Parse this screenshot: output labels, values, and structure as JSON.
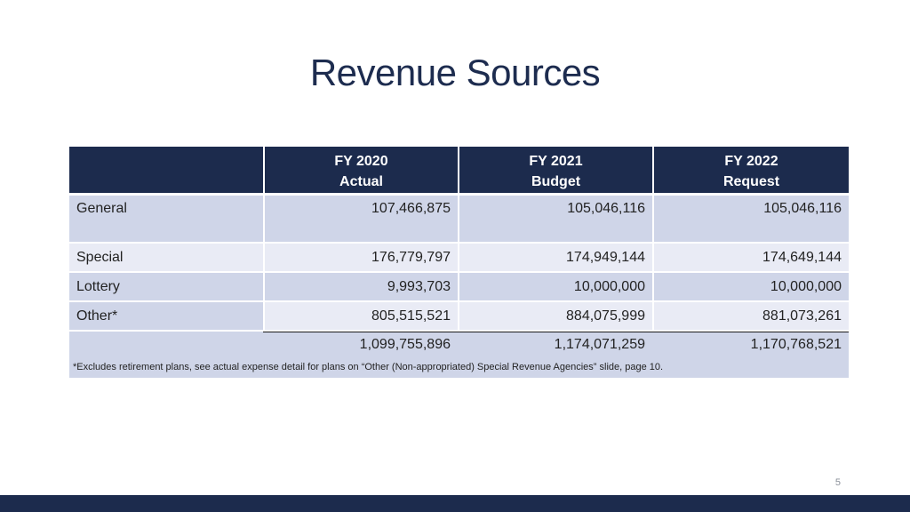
{
  "title": "Revenue Sources",
  "table": {
    "headers": [
      {
        "line1": "",
        "line2": ""
      },
      {
        "line1": "FY 2020",
        "line2": "Actual"
      },
      {
        "line1": "FY 2021",
        "line2": "Budget"
      },
      {
        "line1": "FY 2022",
        "line2": "Request"
      }
    ],
    "rows": [
      {
        "label": "General",
        "fy2020": "107,466,875",
        "fy2021": "105,046,116",
        "fy2022": "105,046,116"
      },
      {
        "label": "Special",
        "fy2020": "176,779,797",
        "fy2021": "174,949,144",
        "fy2022": "174,649,144"
      },
      {
        "label": "Lottery",
        "fy2020": "9,993,703",
        "fy2021": "10,000,000",
        "fy2022": "10,000,000"
      },
      {
        "label": "Other*",
        "fy2020": "805,515,521",
        "fy2021": "884,075,999",
        "fy2022": "881,073,261"
      }
    ],
    "total": {
      "fy2020": "1,099,755,896",
      "fy2021": "1,174,071,259",
      "fy2022": "1,170,768,521"
    },
    "footnote": "*Excludes retirement plans, see actual expense detail for plans on “Other (Non-appropriated) Special Revenue Agencies” slide, page 10."
  },
  "page_number": "5",
  "colors": {
    "navy": "#1c2b4d",
    "row_dark": "#cfd5e8",
    "row_light": "#e9ebf5"
  }
}
